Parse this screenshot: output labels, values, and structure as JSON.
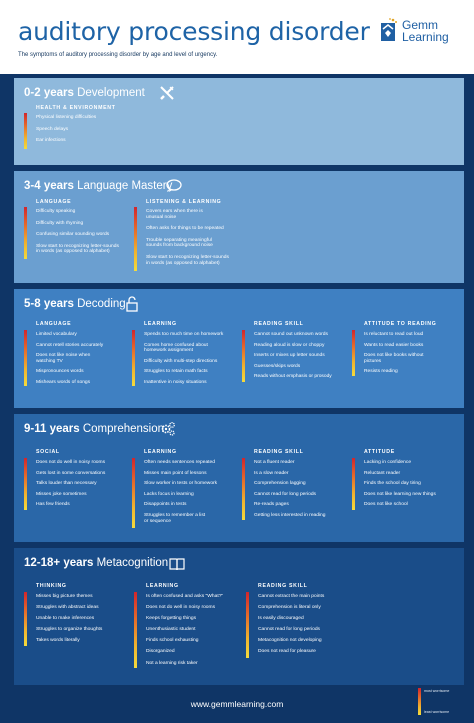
{
  "header": {
    "title": "auditory processing disorder",
    "subtitle": "The symptoms of auditory processing disorder by age and level of urgency.",
    "logo_line1": "Gemm",
    "logo_line2": "Learning"
  },
  "sections": [
    {
      "age": "0-2 years",
      "topic": "Development",
      "icon": "fork-knife-icon",
      "columns": [
        {
          "heading": "HEALTH & ENVIRONMENT",
          "items": [
            "Physical listening difficulties",
            "Speech delays",
            "Ear infections"
          ]
        }
      ]
    },
    {
      "age": "3-4 years",
      "topic": "Language Mastery",
      "icon": "speech-bubble-icon",
      "columns": [
        {
          "heading": "LANGUAGE",
          "items": [
            "Difficulty speaking",
            "Difficulty with rhyming",
            "Confusing similar sounding words",
            "Slow start to recognizing letter-sounds",
            "in words (as opposed to alphabet)"
          ]
        },
        {
          "heading": "LISTENING & LEARNING",
          "items": [
            "Covers ears when there is",
            "unusual noise",
            "Often asks for things to be repeated",
            "Trouble separating meaningful",
            "sounds from background noise",
            "Slow start to recognizing letter-sounds",
            "in words (as opposed to alphabet)"
          ]
        }
      ]
    },
    {
      "age": "5-8 years",
      "topic": "Decoding",
      "icon": "padlock-icon",
      "columns": [
        {
          "heading": "LANGUAGE",
          "items": [
            "Limited vocabulary",
            "Cannot retell stories accurately",
            "Does not like noise when",
            "watching TV",
            "Mispronounces words",
            "Mishears words of songs"
          ]
        },
        {
          "heading": "LEARNING",
          "items": [
            "Spends too much time on homework",
            "Comes home confused about",
            "homework assignment",
            "Difficulty with multi-step directions",
            "Struggles to retain math facts",
            "Inattentive in noisy situations"
          ]
        },
        {
          "heading": "READING SKILL",
          "items": [
            "Cannot sound out unknown words",
            "Reading aloud is slow or choppy",
            "Inserts or mixes up letter sounds",
            "Guesses/skips words",
            "Reads without emphasis or prosody"
          ]
        },
        {
          "heading": "ATTITUDE TO READING",
          "items": [
            "Is reluctant to read out loud",
            "Wants to read easier books",
            "Does not like books without",
            "pictures",
            "Resists reading"
          ]
        }
      ]
    },
    {
      "age": "9-11 years",
      "topic": "Comprehension",
      "icon": "gears-icon",
      "columns": [
        {
          "heading": "SOCIAL",
          "items": [
            "Does not do well in noisy rooms",
            "Gets lost in some conversations",
            "Talks louder than necessary",
            "Misses joke sometimes",
            "Has few friends"
          ]
        },
        {
          "heading": "LEARNING",
          "items": [
            "Often needs sentences repeated",
            "Misses main point of lessons",
            "Slow worker in tests or homework",
            "Lacks focus in learning",
            "Disappoints in tests",
            "Struggles to remember a list",
            "or sequence"
          ]
        },
        {
          "heading": "READING SKILL",
          "items": [
            "Not a fluent reader",
            "Is a slow reader",
            "Comprehension lagging",
            "Cannot read for long periods",
            "Re-reads pages",
            "Getting less interested in reading"
          ]
        },
        {
          "heading": "ATTITUDE",
          "items": [
            "Lacking in confidence",
            "Reluctant reader",
            "Finds the school day tiring",
            "Does not like learning new things",
            "Does not like school"
          ]
        }
      ]
    },
    {
      "age": "12-18+ years",
      "topic": "Metacognition",
      "icon": "open-book-icon",
      "columns": [
        {
          "heading": "THINKING",
          "items": [
            "Misses big picture themes",
            "Struggles with abstract ideas",
            "Unable to make inferences",
            "Struggles to organize thoughts",
            "Takes words literally"
          ]
        },
        {
          "heading": "LEARNING",
          "items": [
            "Is often confused and asks \"What?\"",
            "Does not do well in noisy rooms",
            "Keeps forgetting things",
            "Unenthusiastic student",
            "Finds school exhausting",
            "Disorganized",
            "Not a learning risk taker"
          ]
        },
        {
          "heading": "READING SKILL",
          "items": [
            "Cannot extract the main points",
            "Comprehension is literal only",
            "Is easily discouraged",
            "Cannot read for long periods",
            "Metacognition not developing",
            "Does not read for pleasure"
          ]
        }
      ]
    }
  ],
  "footer": {
    "url": "www.gemmlearning.com",
    "legend_top": "most worrisome",
    "legend_bottom": "least worrisome"
  }
}
